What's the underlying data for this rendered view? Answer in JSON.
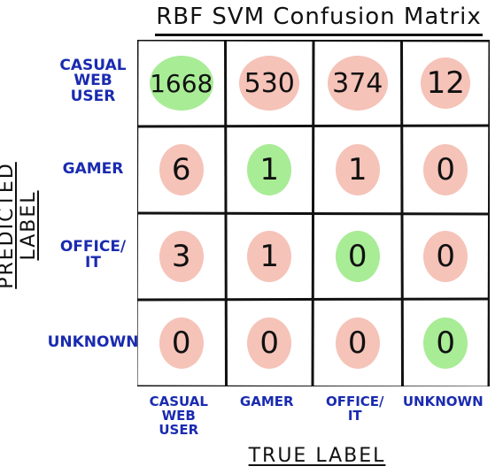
{
  "chart_data": {
    "type": "heatmap",
    "title": "RBF SVM Confusion Matrix",
    "xlabel": "TRUE LABEL",
    "ylabel": "PREDICTED LABEL",
    "row_labels": [
      "CASUAL\nWEB\nUSER",
      "GAMER",
      "OFFICE/\nIT",
      "UNKNOWN"
    ],
    "col_labels": [
      "CASUAL\nWEB\nUSER",
      "GAMER",
      "OFFICE/\nIT",
      "UNKNOWN"
    ],
    "values": [
      [
        1668,
        530,
        374,
        12
      ],
      [
        6,
        1,
        1,
        0
      ],
      [
        3,
        1,
        0,
        0
      ],
      [
        0,
        0,
        0,
        0
      ]
    ],
    "colors": {
      "correct": "#a8ec96",
      "incorrect": "#f5c3b8",
      "grid": "#111111",
      "labels": "#1a2bb0"
    }
  }
}
